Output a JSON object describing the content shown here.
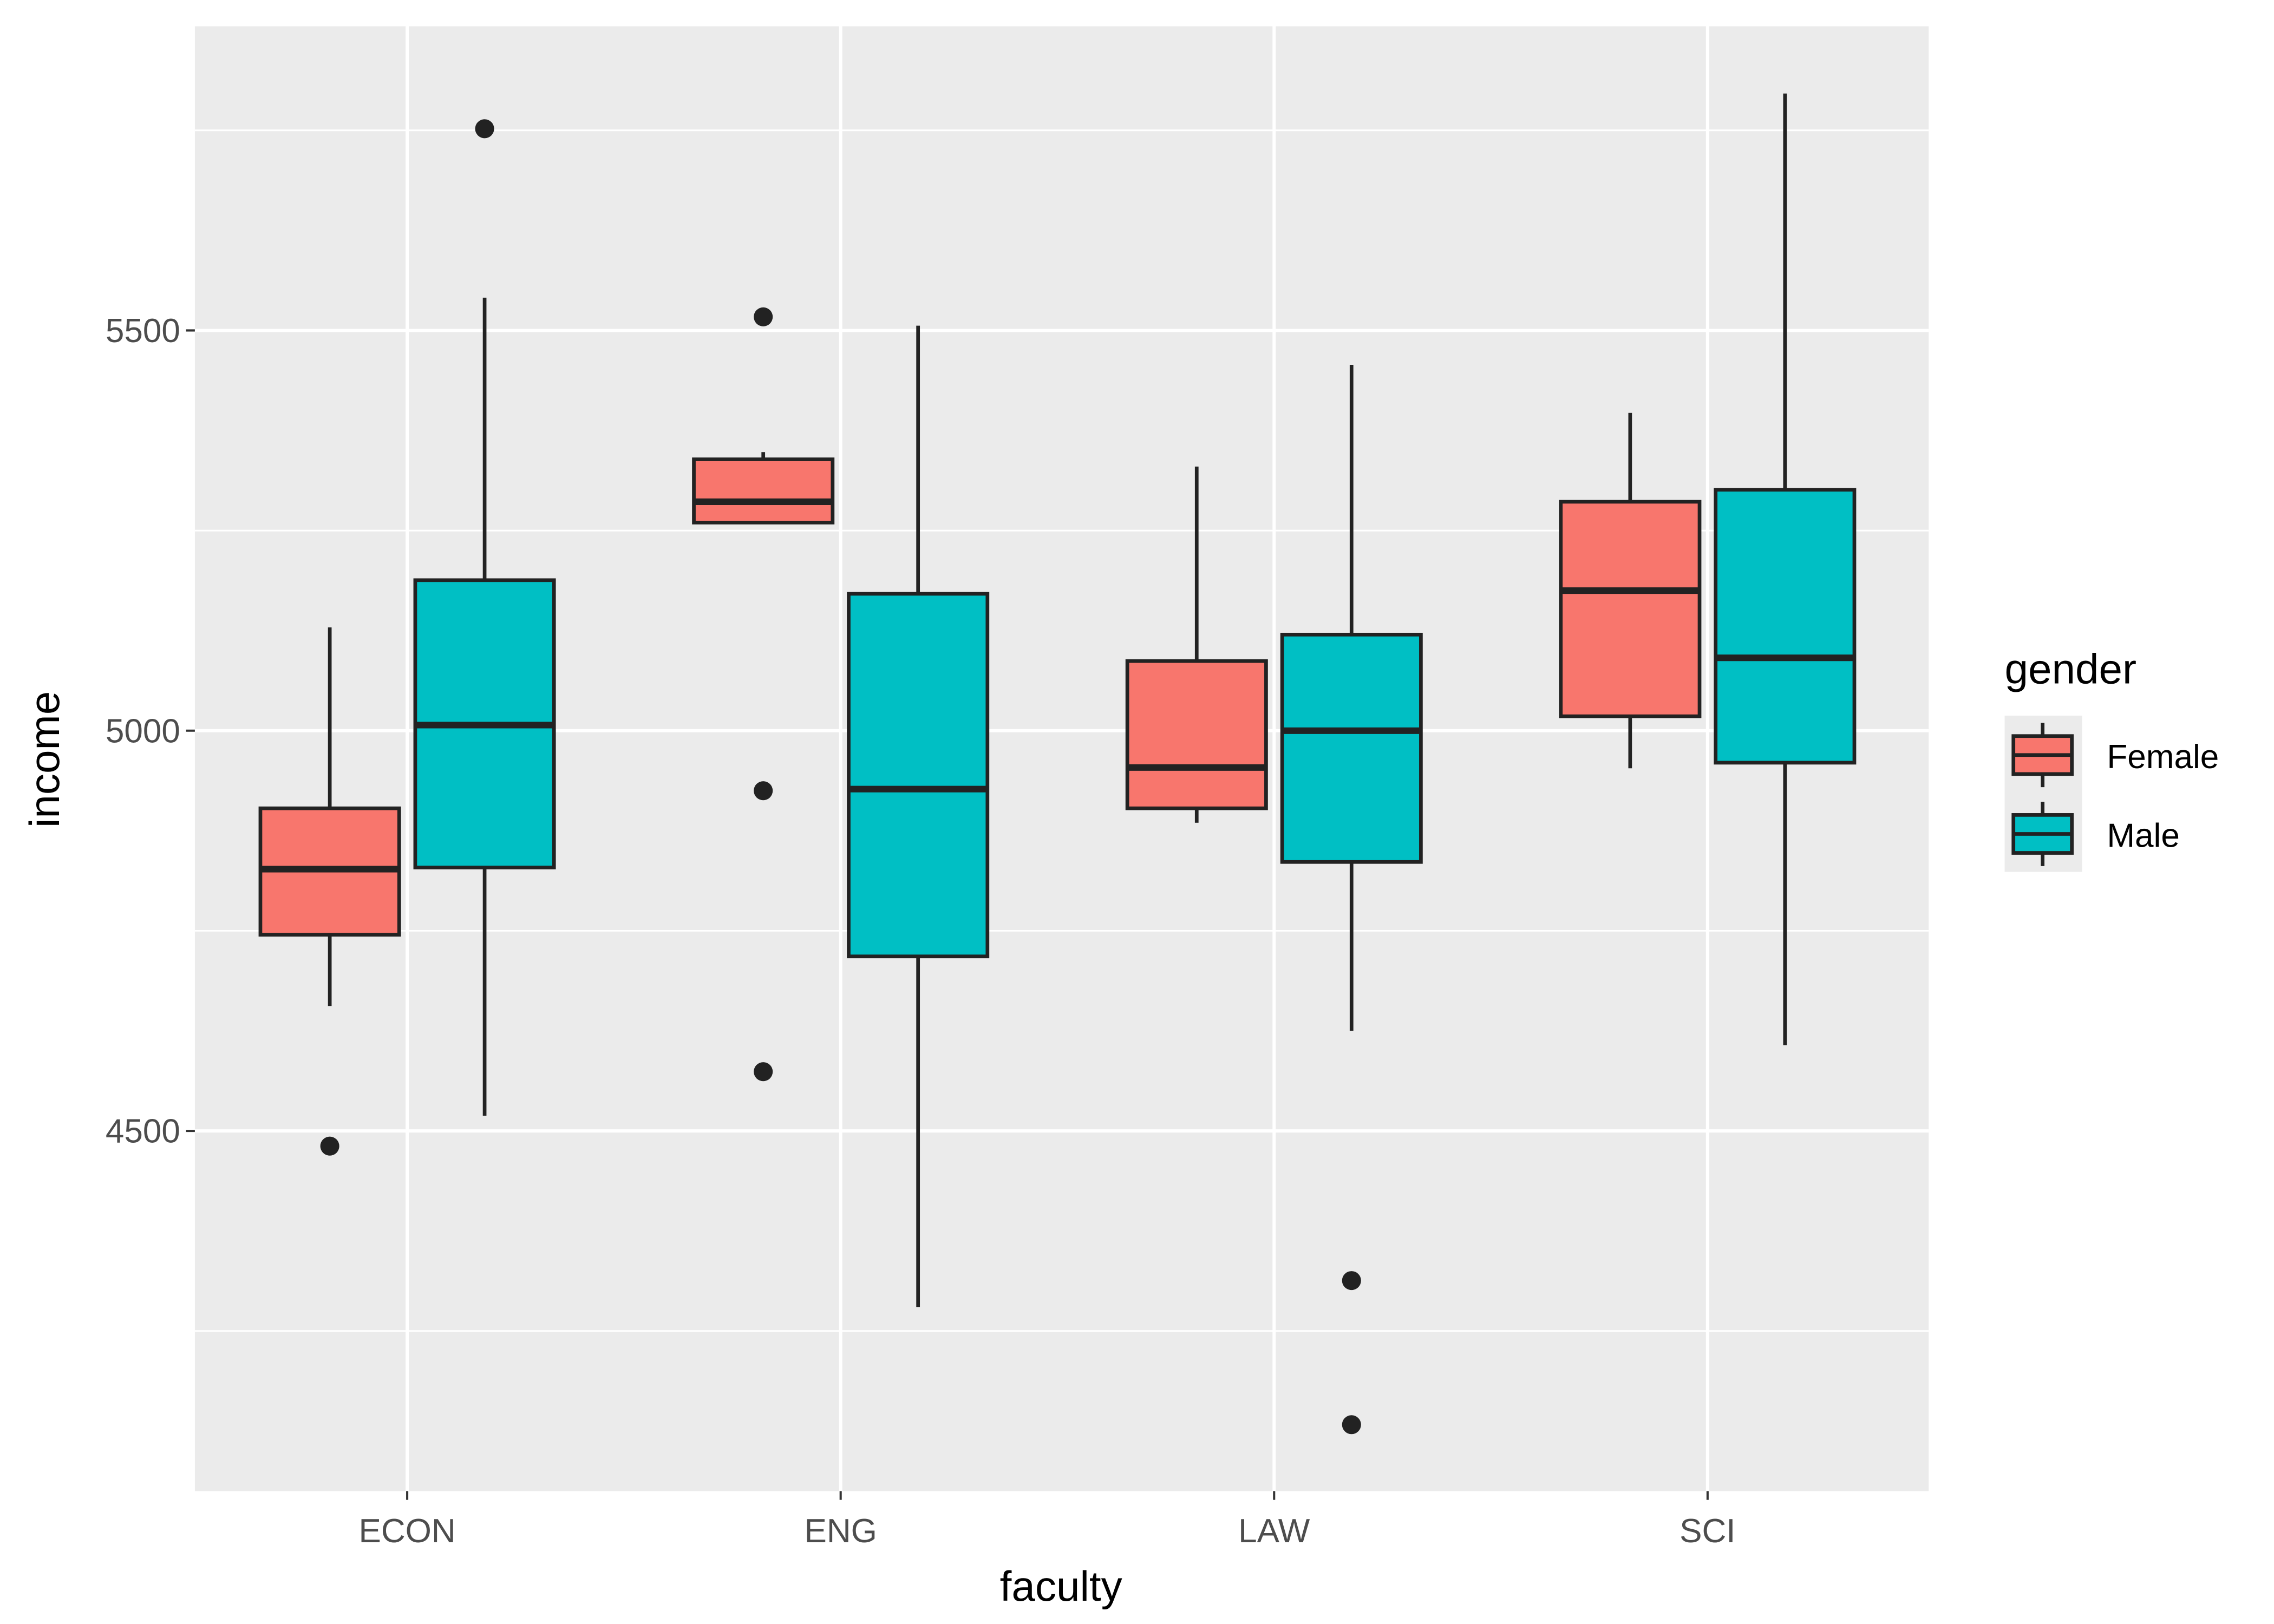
{
  "chart_data": {
    "type": "boxplot",
    "xlabel": "faculty",
    "ylabel": "income",
    "categories": [
      "ECON",
      "ENG",
      "LAW",
      "SCI"
    ],
    "ylim": [
      4050,
      5880
    ],
    "yticks": [
      4500,
      5000,
      5500
    ],
    "grid": true,
    "legend": {
      "title": "gender",
      "placement": "right"
    },
    "series": [
      {
        "name": "Female",
        "color": "#F8766D",
        "boxes": [
          {
            "category": "ECON",
            "whisker_low": 4656,
            "q1": 4745,
            "median": 4827,
            "q3": 4903,
            "whisker_high": 5129,
            "outliers": [
              4481
            ]
          },
          {
            "category": "ENG",
            "whisker_low": 5260,
            "q1": 5260,
            "median": 5286,
            "q3": 5339,
            "whisker_high": 5348,
            "outliers": [
              5517,
              4925,
              4574
            ]
          },
          {
            "category": "LAW",
            "whisker_low": 4885,
            "q1": 4903,
            "median": 4954,
            "q3": 5087,
            "whisker_high": 5330,
            "outliers": []
          },
          {
            "category": "SCI",
            "whisker_low": 4953,
            "q1": 5018,
            "median": 5175,
            "q3": 5286,
            "whisker_high": 5397,
            "outliers": []
          }
        ]
      },
      {
        "name": "Male",
        "color": "#00BFC4",
        "boxes": [
          {
            "category": "ECON",
            "whisker_low": 4519,
            "q1": 4829,
            "median": 5007,
            "q3": 5188,
            "whisker_high": 5541,
            "outliers": [
              5752
            ]
          },
          {
            "category": "ENG",
            "whisker_low": 4280,
            "q1": 4718,
            "median": 4927,
            "q3": 5171,
            "whisker_high": 5506,
            "outliers": []
          },
          {
            "category": "LAW",
            "whisker_low": 4625,
            "q1": 4836,
            "median": 5000,
            "q3": 5120,
            "whisker_high": 5457,
            "outliers": [
              4313,
              4133
            ]
          },
          {
            "category": "SCI",
            "whisker_low": 4607,
            "q1": 4960,
            "median": 5091,
            "q3": 5301,
            "whisker_high": 5796,
            "outliers": []
          }
        ]
      }
    ]
  }
}
